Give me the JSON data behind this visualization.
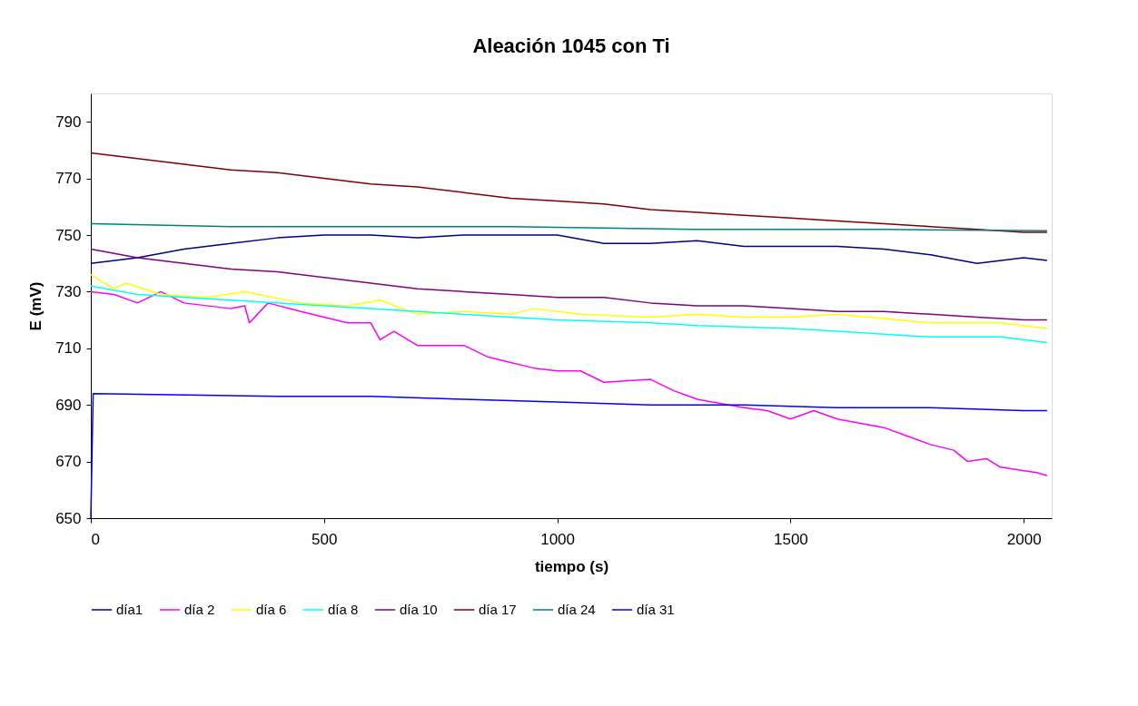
{
  "chart_data": {
    "type": "line",
    "title": "Aleación 1045 con Ti",
    "xlabel": "tiempo (s)",
    "ylabel": "E (mV)",
    "xlim": [
      0,
      2060
    ],
    "ylim": [
      650,
      800
    ],
    "xticks": [
      0,
      500,
      1000,
      1500,
      2000
    ],
    "yticks": [
      650,
      670,
      690,
      710,
      730,
      750,
      770,
      790
    ],
    "grid": false,
    "legend": "bottom",
    "marker": "none",
    "line_style": "solid",
    "series": [
      {
        "name": "día1",
        "color": "#000080",
        "x": [
          0,
          100,
          200,
          300,
          400,
          500,
          600,
          700,
          800,
          900,
          1000,
          1100,
          1200,
          1300,
          1400,
          1500,
          1600,
          1700,
          1800,
          1900,
          2000,
          2050
        ],
        "values": [
          740,
          742,
          745,
          747,
          749,
          750,
          750,
          749,
          750,
          750,
          750,
          747,
          747,
          748,
          746,
          746,
          746,
          745,
          743,
          740,
          742,
          741
        ]
      },
      {
        "name": "día 2",
        "color": "#ff00ff",
        "x": [
          0,
          50,
          100,
          150,
          200,
          300,
          330,
          340,
          380,
          450,
          550,
          600,
          620,
          650,
          700,
          800,
          850,
          900,
          950,
          1000,
          1050,
          1100,
          1200,
          1250,
          1300,
          1400,
          1450,
          1500,
          1550,
          1600,
          1700,
          1750,
          1800,
          1850,
          1880,
          1920,
          1950,
          2030,
          2050
        ],
        "values": [
          730,
          729,
          726,
          730,
          726,
          724,
          725,
          719,
          726,
          723,
          719,
          719,
          713,
          716,
          711,
          711,
          707,
          705,
          703,
          702,
          702,
          698,
          699,
          695,
          692,
          689,
          688,
          685,
          688,
          685,
          682,
          679,
          676,
          674,
          670,
          671,
          668,
          666,
          665
        ]
      },
      {
        "name": "día 6",
        "color": "#ffff00",
        "x": [
          0,
          50,
          75,
          150,
          250,
          330,
          450,
          550,
          620,
          700,
          800,
          900,
          950,
          1050,
          1200,
          1300,
          1400,
          1500,
          1600,
          1800,
          1950,
          2050
        ],
        "values": [
          736,
          731,
          733,
          729,
          728,
          730,
          726,
          725,
          727,
          722,
          723,
          722,
          724,
          722,
          721,
          722,
          721,
          721,
          722,
          719,
          719,
          717
        ]
      },
      {
        "name": "día 8",
        "color": "#00ffff",
        "x": [
          0,
          100,
          300,
          500,
          700,
          900,
          1000,
          1200,
          1300,
          1500,
          1600,
          1700,
          1800,
          1950,
          2050
        ],
        "values": [
          732,
          729,
          727,
          725,
          723,
          721,
          720,
          719,
          718,
          717,
          716,
          715,
          714,
          714,
          712
        ]
      },
      {
        "name": "día 10",
        "color": "#800080",
        "x": [
          0,
          100,
          200,
          300,
          400,
          500,
          600,
          700,
          800,
          900,
          1000,
          1100,
          1200,
          1300,
          1400,
          1500,
          1600,
          1700,
          1800,
          1900,
          2000,
          2050
        ],
        "values": [
          745,
          742,
          740,
          738,
          737,
          735,
          733,
          731,
          730,
          729,
          728,
          728,
          726,
          725,
          725,
          724,
          723,
          723,
          722,
          721,
          720,
          720
        ]
      },
      {
        "name": "día 17",
        "color": "#800000",
        "x": [
          0,
          100,
          200,
          300,
          400,
          500,
          600,
          700,
          800,
          900,
          1000,
          1100,
          1200,
          1300,
          1400,
          1500,
          1600,
          1700,
          1800,
          1900,
          2000,
          2050
        ],
        "values": [
          779,
          777,
          775,
          773,
          772,
          770,
          768,
          767,
          765,
          763,
          762,
          761,
          759,
          758,
          757,
          756,
          755,
          754,
          753,
          752,
          751,
          751
        ]
      },
      {
        "name": "día 24",
        "color": "#008080",
        "x": [
          0,
          300,
          600,
          900,
          1300,
          1700,
          2050
        ],
        "values": [
          754,
          753,
          753,
          753,
          752,
          752,
          751.5
        ]
      },
      {
        "name": "día 31",
        "color": "#0000ff",
        "x": [
          0,
          5,
          400,
          600,
          800,
          1000,
          1200,
          1400,
          1600,
          1800,
          2000,
          2050
        ],
        "values": [
          650,
          694,
          693,
          693,
          692,
          691,
          690,
          690,
          689,
          689,
          688,
          688
        ]
      }
    ]
  }
}
